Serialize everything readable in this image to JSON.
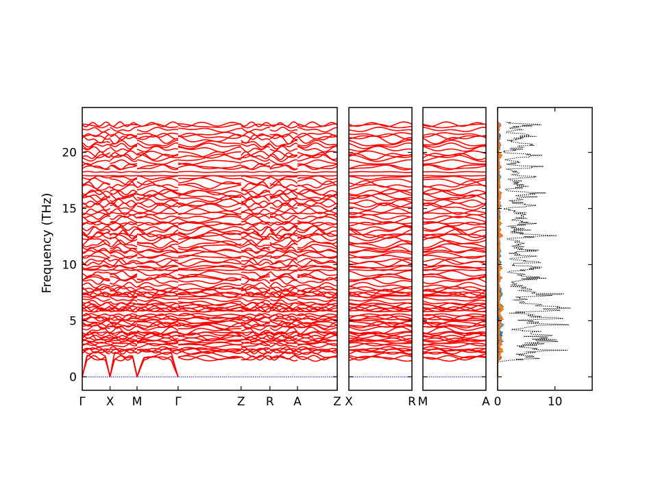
{
  "chart_data": [
    {
      "type": "line",
      "ylabel": "Frequency (THz)",
      "ylim": [
        -1.2,
        24.0
      ],
      "yticks": [
        0,
        5,
        10,
        15,
        20
      ],
      "xticks": [
        "Γ",
        "X",
        "M",
        "Γ",
        "Z",
        "R",
        "A",
        "Z"
      ],
      "segments": [
        {
          "from": "Γ",
          "to": "X"
        },
        {
          "from": "X",
          "to": "M"
        },
        {
          "from": "M",
          "to": "Γ"
        },
        {
          "from": "Γ",
          "to": "Z"
        },
        {
          "from": "Z",
          "to": "R"
        },
        {
          "from": "R",
          "to": "A"
        },
        {
          "from": "A",
          "to": "Z"
        }
      ],
      "series_color": "#ff0000",
      "zero_line_color": "#0000ff",
      "band_count": 96,
      "frequency_range_thz": [
        0,
        22.5
      ],
      "acoustic_branches": 3
    },
    {
      "type": "line",
      "xticks": [
        "X",
        "R"
      ],
      "segments": [
        {
          "from": "X",
          "to": "R"
        }
      ],
      "ylim": [
        -1.2,
        24.0
      ],
      "series_color": "#ff0000"
    },
    {
      "type": "line",
      "xticks": [
        "M",
        "A"
      ],
      "segments": [
        {
          "from": "M",
          "to": "A"
        }
      ],
      "ylim": [
        -1.2,
        24.0
      ],
      "series_color": "#ff0000"
    },
    {
      "type": "area",
      "xticks": [
        0,
        10
      ],
      "xlim": [
        0,
        16.5
      ],
      "ylim": [
        -1.2,
        24.0
      ],
      "total_dos_color": "#000000",
      "projected_colors": [
        "#e377c2",
        "#2ca02c",
        "#8c564b",
        "#d62728",
        "#17becf",
        "#bcbd22",
        "#7f7f7f",
        "#9467bd",
        "#1f77b4",
        "#ff7f0e"
      ]
    }
  ]
}
